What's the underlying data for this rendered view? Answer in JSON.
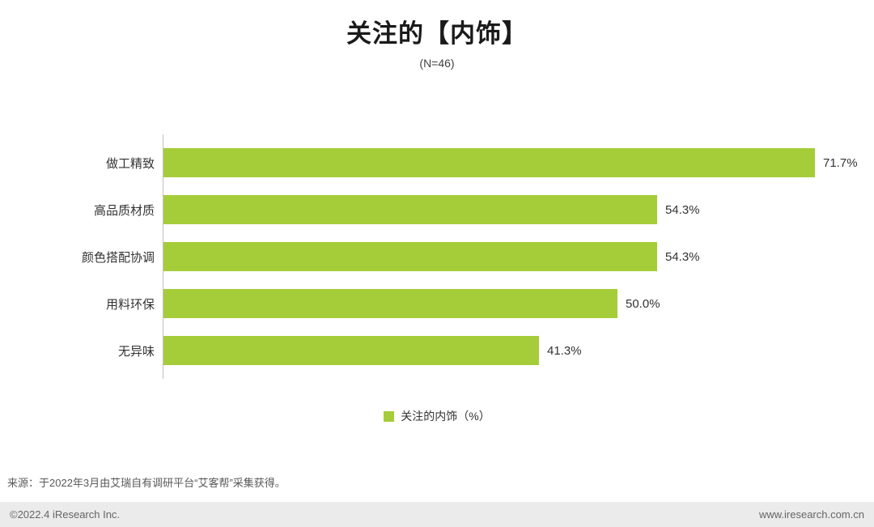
{
  "header": {
    "title": "关注的【内饰】",
    "subtitle": "(N=46)"
  },
  "chart_data": {
    "type": "bar",
    "orientation": "horizontal",
    "title": "关注的【内饰】",
    "sample_size": "(N=46)",
    "categories": [
      "做工精致",
      "高品质材质",
      "颜色搭配协调",
      "用料环保",
      "无异味"
    ],
    "values": [
      71.7,
      54.3,
      54.3,
      50.0,
      41.3
    ],
    "value_labels": [
      "71.7%",
      "54.3%",
      "54.3%",
      "50.0%",
      "41.3%"
    ],
    "bar_color": "#a5cd39",
    "axis_line_color": "#bfbfbf",
    "xlim": [
      0,
      80
    ],
    "grid": false,
    "legend_position": "bottom",
    "legend": [
      {
        "label": "关注的内饰（%）",
        "color": "#a5cd39"
      }
    ]
  },
  "footer": {
    "source": "来源：于2022年3月由艾瑞自有调研平台“艾客帮”采集获得。",
    "copyright": "©2022.4 iResearch Inc.",
    "website": "www.iresearch.com.cn"
  }
}
